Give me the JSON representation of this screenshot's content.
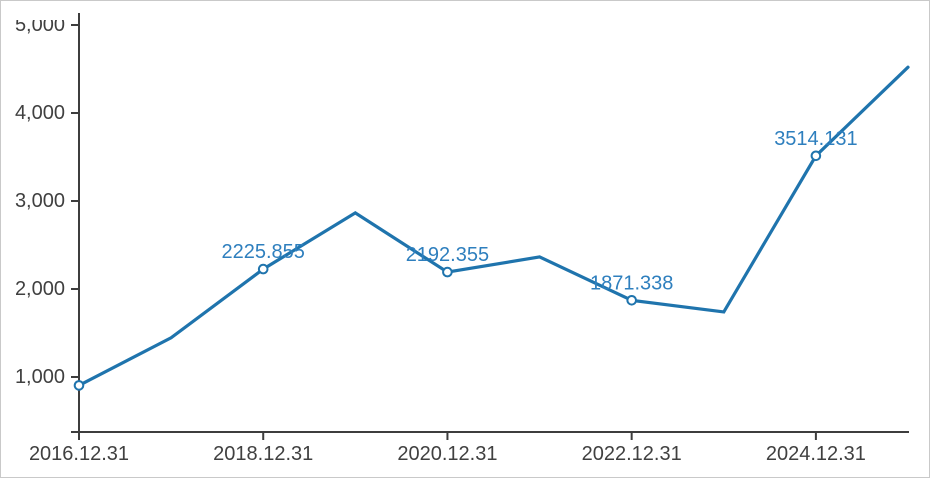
{
  "chart_data": {
    "type": "line",
    "title": "",
    "xlabel": "",
    "ylabel": "",
    "categories": [
      "2016.12.31",
      "2017.12.31",
      "2018.12.31",
      "2019.12.31",
      "2020.12.31",
      "2021.12.31",
      "2022.12.31",
      "2023.12.31",
      "2024.12.31",
      "2025.12.31"
    ],
    "values": [
      905,
      1445,
      2225.855,
      2865,
      2192.355,
      2365,
      1871.338,
      1740,
      3514.131,
      4520
    ],
    "point_labels": {
      "2": "2225.855",
      "4": "2192.355",
      "6": "1871.338",
      "8": "3514.131"
    },
    "marker_indices": [
      0,
      2,
      4,
      6,
      8
    ],
    "x_tick_indices": [
      0,
      2,
      4,
      6,
      8
    ],
    "x_tick_labels": [
      "2016.12.31",
      "2018.12.31",
      "2020.12.31",
      "2022.12.31",
      "2024.12.31"
    ],
    "y_ticks": [
      {
        "value": 1000,
        "label": "1,000"
      },
      {
        "value": 2000,
        "label": "2,000"
      },
      {
        "value": 3000,
        "label": "3,000"
      },
      {
        "value": 4000,
        "label": "4,000"
      },
      {
        "value": 5000,
        "label": "5,000"
      }
    ],
    "ylim": [
      375,
      5000
    ],
    "grid": false,
    "legend": "none",
    "colors": {
      "line": "#1f74ad",
      "point_label": "#2e7fbe",
      "marker_fill": "#ffffff",
      "axis": "#3d3d3d",
      "tick_label": "#404040",
      "background": "#ffffff",
      "frame_border": "#c9c9c9"
    }
  }
}
